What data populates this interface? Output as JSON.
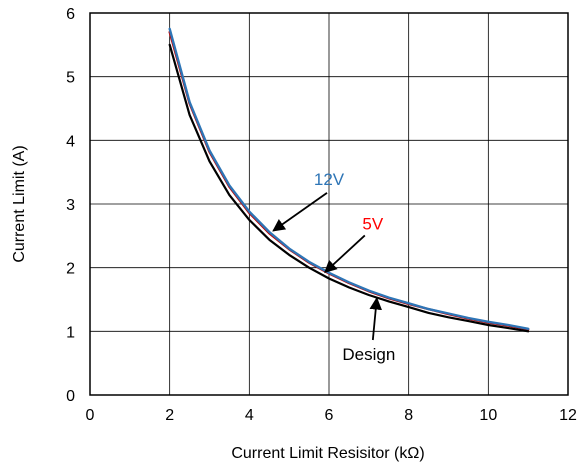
{
  "chart_data": {
    "type": "line",
    "xlabel": "Current Limit Resisitor (kΩ)",
    "ylabel": "Current Limit (A)",
    "xlim": [
      0,
      12
    ],
    "ylim": [
      0,
      6
    ],
    "xticks": [
      "0",
      "2",
      "4",
      "6",
      "8",
      "10",
      "12"
    ],
    "yticks": [
      "0",
      "1",
      "2",
      "3",
      "4",
      "5",
      "6"
    ],
    "grid": true,
    "series": [
      {
        "name": "Design",
        "color": "#000000",
        "x": [
          2,
          2.5,
          3,
          3.5,
          4,
          4.5,
          5,
          5.5,
          6,
          6.5,
          7,
          7.5,
          8,
          8.5,
          9,
          9.5,
          10,
          10.5,
          11
        ],
        "y": [
          5.5,
          4.4,
          3.67,
          3.14,
          2.75,
          2.44,
          2.2,
          2.0,
          1.83,
          1.69,
          1.57,
          1.47,
          1.38,
          1.29,
          1.22,
          1.16,
          1.1,
          1.05,
          1.0
        ]
      },
      {
        "name": "5V",
        "color": "#c00000",
        "x": [
          2,
          2.5,
          3,
          3.5,
          4,
          4.5,
          5,
          5.5,
          6,
          6.5,
          7,
          7.5,
          8,
          8.5,
          9,
          9.5,
          10,
          10.5,
          11
        ],
        "y": [
          5.7,
          4.58,
          3.82,
          3.27,
          2.86,
          2.54,
          2.29,
          2.08,
          1.91,
          1.76,
          1.63,
          1.52,
          1.43,
          1.35,
          1.27,
          1.2,
          1.14,
          1.09,
          1.03
        ]
      },
      {
        "name": "12V",
        "color": "#2e75b6",
        "x": [
          2,
          2.5,
          3,
          3.5,
          4,
          4.5,
          5,
          5.5,
          6,
          6.5,
          7,
          7.5,
          8,
          8.5,
          9,
          9.5,
          10,
          10.5,
          11
        ],
        "y": [
          5.75,
          4.6,
          3.84,
          3.29,
          2.88,
          2.56,
          2.3,
          2.09,
          1.92,
          1.77,
          1.64,
          1.53,
          1.44,
          1.35,
          1.28,
          1.21,
          1.15,
          1.1,
          1.04
        ]
      }
    ],
    "annotations": [
      {
        "text": "12V",
        "color": "#2e75b6",
        "label_at": [
          6.0,
          3.3
        ],
        "arrow_to": [
          4.6,
          2.58
        ]
      },
      {
        "text": "5V",
        "color": "#ff0000",
        "label_at": [
          7.1,
          2.6
        ],
        "arrow_to": [
          5.9,
          1.93
        ]
      },
      {
        "text": "Design",
        "color": "#000000",
        "label_at": [
          7.0,
          0.55
        ],
        "arrow_to": [
          7.2,
          1.52
        ]
      }
    ]
  }
}
